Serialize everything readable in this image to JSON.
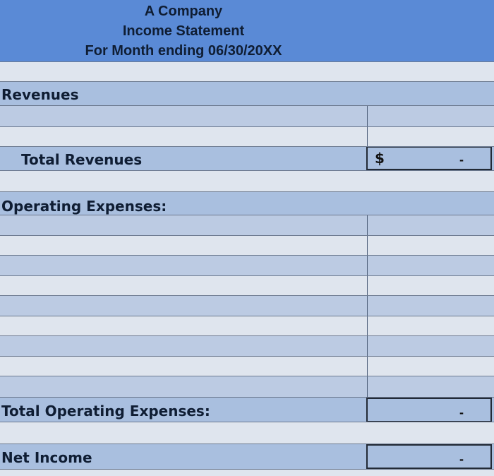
{
  "header": {
    "company": "A Company",
    "statement": "Income Statement",
    "period": "For Month ending  06/30/20XX"
  },
  "revenues": {
    "section_label": "Revenues",
    "total_label": "Total Revenues",
    "total_currency": "$",
    "total_value": "-"
  },
  "operating_expenses": {
    "section_label": "Operating Expenses:",
    "total_label": "Total Operating Expenses:",
    "total_value": "-"
  },
  "net_income": {
    "label": "Net Income",
    "value": "-"
  }
}
